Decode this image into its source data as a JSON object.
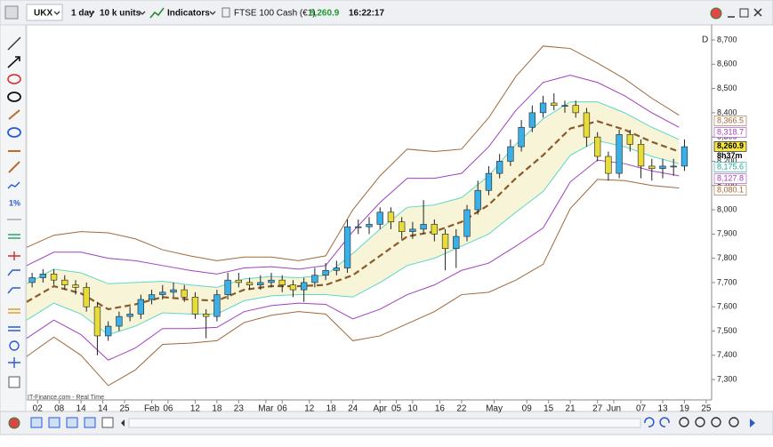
{
  "toolbar": {
    "symbol": "UKX",
    "timeframe": "1 day",
    "units": "10 k units",
    "indicators": "Indicators",
    "instrument": "FTSE 100 Cash (€1)",
    "price": "8,260.9",
    "time": "16:22:17",
    "sidebar_label": "1%"
  },
  "chart_data": {
    "type": "candlestick",
    "period_label": "D",
    "xlim": [
      0,
      126
    ],
    "ylim": [
      7216,
      8755
    ],
    "grid": false,
    "xticks": [
      {
        "value": 2,
        "label": "02"
      },
      {
        "value": 6,
        "label": "08"
      },
      {
        "value": 10,
        "label": "14"
      },
      14,
      {
        "value": 18,
        "label": "25"
      },
      {
        "value": 23,
        "label": "Feb"
      },
      {
        "value": 26,
        "label": "06"
      },
      {
        "value": 31,
        "label": "12"
      },
      {
        "value": 35,
        "label": "18"
      },
      {
        "value": 39,
        "label": "23"
      },
      {
        "value": 44,
        "label": "Mar"
      },
      {
        "value": 47,
        "label": "06"
      },
      {
        "value": 52,
        "label": "12"
      },
      {
        "value": 56,
        "label": "18"
      },
      {
        "value": 60,
        "label": "24"
      },
      {
        "value": 65,
        "label": "Apr"
      },
      {
        "value": 68,
        "label": "05"
      },
      {
        "value": 71,
        "label": "10"
      },
      {
        "value": 76,
        "label": "16"
      },
      {
        "value": 80,
        "label": "22"
      },
      {
        "value": 86,
        "label": "May"
      },
      {
        "value": 92,
        "label": "09"
      },
      {
        "value": 96,
        "label": "15"
      },
      {
        "value": 100,
        "label": "21"
      },
      {
        "value": 105,
        "label": "27"
      },
      {
        "value": 108,
        "label": "Jun"
      },
      {
        "value": 113,
        "label": "07"
      },
      {
        "value": 117,
        "label": "13"
      },
      {
        "value": 121,
        "label": "19"
      },
      {
        "value": 125,
        "label": "25"
      }
    ],
    "yticks": [
      {
        "value": 7300,
        "label": "7,300"
      },
      {
        "value": 7400,
        "label": "7,400"
      },
      {
        "value": 7500,
        "label": "7,500"
      },
      {
        "value": 7600,
        "label": "7,600"
      },
      {
        "value": 7700,
        "label": "7,700"
      },
      {
        "value": 7800,
        "label": "7,800"
      },
      {
        "value": 7900,
        "label": "7,900"
      },
      {
        "value": 8000,
        "label": "8,000"
      },
      {
        "value": 8100,
        "label": "8,100"
      },
      {
        "value": 8200,
        "label": "8,200"
      },
      {
        "value": 8300,
        "label": "8,300"
      },
      {
        "value": 8400,
        "label": "8,400"
      },
      {
        "value": 8500,
        "label": "8,500"
      },
      {
        "value": 8600,
        "label": "8,600"
      },
      {
        "value": 8700,
        "label": "8,700"
      }
    ],
    "candles": {
      "up_color": "#3ab0e8",
      "down_color": "#e8dc3a",
      "wick_color": "#222",
      "x": [
        1,
        3,
        5,
        7,
        9,
        11,
        13,
        15,
        17,
        19,
        21,
        23,
        25,
        27,
        29,
        31,
        33,
        35,
        37,
        39,
        41,
        43,
        45,
        47,
        49,
        51,
        53,
        55,
        57,
        59,
        61,
        63,
        65,
        67,
        69,
        71,
        73,
        75,
        77,
        79,
        81,
        83,
        85,
        87,
        89,
        91,
        93,
        95,
        97,
        99,
        101,
        103,
        105,
        107,
        109,
        111,
        113,
        115,
        117,
        119,
        121
      ],
      "open": [
        7700,
        7720,
        7735,
        7710,
        7690,
        7680,
        7600,
        7480,
        7520,
        7560,
        7570,
        7630,
        7650,
        7660,
        7670,
        7640,
        7570,
        7560,
        7650,
        7710,
        7700,
        7690,
        7700,
        7710,
        7690,
        7670,
        7700,
        7730,
        7750,
        7760,
        7930,
        7930,
        7940,
        7990,
        7950,
        7910,
        7920,
        7940,
        7900,
        7840,
        7890,
        8000,
        8080,
        8150,
        8200,
        8260,
        8340,
        8400,
        8440,
        8430,
        8430,
        8400,
        8300,
        8220,
        8150,
        8310,
        8270,
        8180,
        8170,
        8180,
        8180
      ],
      "high": [
        7740,
        7755,
        7755,
        7730,
        7710,
        7700,
        7620,
        7540,
        7580,
        7600,
        7650,
        7670,
        7690,
        7700,
        7690,
        7660,
        7590,
        7670,
        7740,
        7740,
        7720,
        7730,
        7740,
        7730,
        7710,
        7720,
        7760,
        7780,
        7790,
        7960,
        7960,
        7970,
        8010,
        8010,
        7970,
        7950,
        8040,
        7960,
        7920,
        7920,
        8020,
        8120,
        8180,
        8230,
        8290,
        8370,
        8430,
        8470,
        8480,
        8450,
        8450,
        8420,
        8320,
        8240,
        8330,
        8330,
        8290,
        8210,
        8210,
        8210,
        8290
      ],
      "low": [
        7680,
        7700,
        7690,
        7670,
        7650,
        7580,
        7400,
        7460,
        7500,
        7540,
        7550,
        7610,
        7630,
        7640,
        7620,
        7550,
        7470,
        7540,
        7630,
        7680,
        7670,
        7670,
        7680,
        7660,
        7640,
        7620,
        7680,
        7710,
        7730,
        7740,
        7900,
        7900,
        7920,
        7920,
        7880,
        7880,
        7900,
        7870,
        7750,
        7760,
        7870,
        7980,
        8060,
        8130,
        8180,
        8240,
        8320,
        8380,
        8410,
        8400,
        8380,
        8260,
        8200,
        8120,
        8130,
        8240,
        8130,
        8120,
        8130,
        8140,
        8160
      ],
      "close": [
        7720,
        7735,
        7710,
        7690,
        7680,
        7600,
        7480,
        7520,
        7560,
        7570,
        7630,
        7650,
        7660,
        7670,
        7640,
        7570,
        7560,
        7650,
        7710,
        7700,
        7690,
        7700,
        7710,
        7690,
        7670,
        7700,
        7730,
        7750,
        7760,
        7930,
        7930,
        7940,
        7990,
        7950,
        7910,
        7920,
        7940,
        7900,
        7840,
        7890,
        8000,
        8080,
        8150,
        8200,
        8260,
        8340,
        8400,
        8440,
        8430,
        8430,
        8400,
        8300,
        8220,
        8150,
        8310,
        8270,
        8180,
        8170,
        8180,
        8180,
        8260
      ]
    },
    "band_x": [
      0,
      5,
      10,
      15,
      20,
      25,
      30,
      35,
      40,
      45,
      50,
      55,
      60,
      65,
      70,
      75,
      80,
      85,
      90,
      95,
      100,
      105,
      110,
      115,
      120
    ],
    "band_fill": "#f7f4d8",
    "fill_between": [
      1,
      2
    ],
    "bands": [
      {
        "color": "#8b5a2b",
        "dashed": true,
        "width": 2.2,
        "values": [
          7620,
          7685,
          7655,
          7590,
          7610,
          7640,
          7630,
          7625,
          7670,
          7685,
          7685,
          7690,
          7730,
          7810,
          7890,
          7910,
          7950,
          8020,
          8130,
          8225,
          8335,
          8365,
          8330,
          8280,
          8240
        ]
      },
      {
        "color": "#5fd8c8",
        "dashed": false,
        "width": 1,
        "values": [
          7695,
          7755,
          7740,
          7695,
          7700,
          7705,
          7690,
          7680,
          7715,
          7725,
          7720,
          7730,
          7820,
          7920,
          8010,
          8020,
          8050,
          8140,
          8270,
          8375,
          8445,
          8445,
          8400,
          8340,
          8290
        ]
      },
      {
        "color": "#5fd8c8",
        "dashed": false,
        "width": 1,
        "values": [
          7545,
          7615,
          7570,
          7485,
          7520,
          7575,
          7570,
          7570,
          7625,
          7645,
          7650,
          7650,
          7640,
          7700,
          7770,
          7800,
          7850,
          7900,
          7990,
          8075,
          8225,
          8285,
          8260,
          8220,
          8190
        ]
      },
      {
        "color": "#a040c0",
        "dashed": false,
        "width": 1,
        "values": [
          7770,
          7825,
          7825,
          7800,
          7790,
          7770,
          7750,
          7735,
          7760,
          7765,
          7755,
          7770,
          7910,
          8030,
          8130,
          8130,
          8150,
          8260,
          8410,
          8525,
          8555,
          8525,
          8470,
          8400,
          8340
        ]
      },
      {
        "color": "#a040c0",
        "dashed": false,
        "width": 1,
        "values": [
          7470,
          7545,
          7485,
          7380,
          7430,
          7510,
          7510,
          7515,
          7580,
          7605,
          7615,
          7610,
          7550,
          7590,
          7650,
          7690,
          7750,
          7780,
          7850,
          7925,
          8115,
          8205,
          8190,
          8160,
          8140
        ]
      },
      {
        "color": "#a0683a",
        "dashed": false,
        "width": 1,
        "values": [
          7845,
          7895,
          7910,
          7905,
          7880,
          7835,
          7810,
          7790,
          7805,
          7805,
          7790,
          7810,
          8000,
          8140,
          8250,
          8240,
          8250,
          8380,
          8550,
          8675,
          8665,
          8605,
          8540,
          8460,
          8390
        ]
      },
      {
        "color": "#a0683a",
        "dashed": false,
        "width": 1,
        "values": [
          7395,
          7475,
          7400,
          7275,
          7340,
          7445,
          7450,
          7460,
          7535,
          7565,
          7580,
          7570,
          7460,
          7480,
          7530,
          7580,
          7650,
          7660,
          7710,
          7775,
          8005,
          8125,
          8120,
          8100,
          8090
        ]
      }
    ],
    "price_tags": [
      {
        "value": 8366.5,
        "label": "8,366.5",
        "color": "#a0683a",
        "background": "#ffffff"
      },
      {
        "value": 8318.7,
        "label": "8,318.7",
        "color": "#a040c0",
        "background": "#ffffff"
      },
      {
        "value": 8260.9,
        "label": "8,260.9",
        "color": "#000000",
        "background": "#f5e642",
        "note": "8h37m"
      },
      {
        "value": 8175.6,
        "label": "8,175.6",
        "color": "#20a898",
        "background": "#ffffff"
      },
      {
        "value": 8127.8,
        "label": "8,127.8",
        "color": "#a040c0",
        "background": "#ffffff"
      },
      {
        "value": 8080.1,
        "label": "8,080.1",
        "color": "#a0683a",
        "background": "#ffffff"
      }
    ]
  },
  "footer": {
    "source": "IT-Finance.com - Real Time"
  }
}
